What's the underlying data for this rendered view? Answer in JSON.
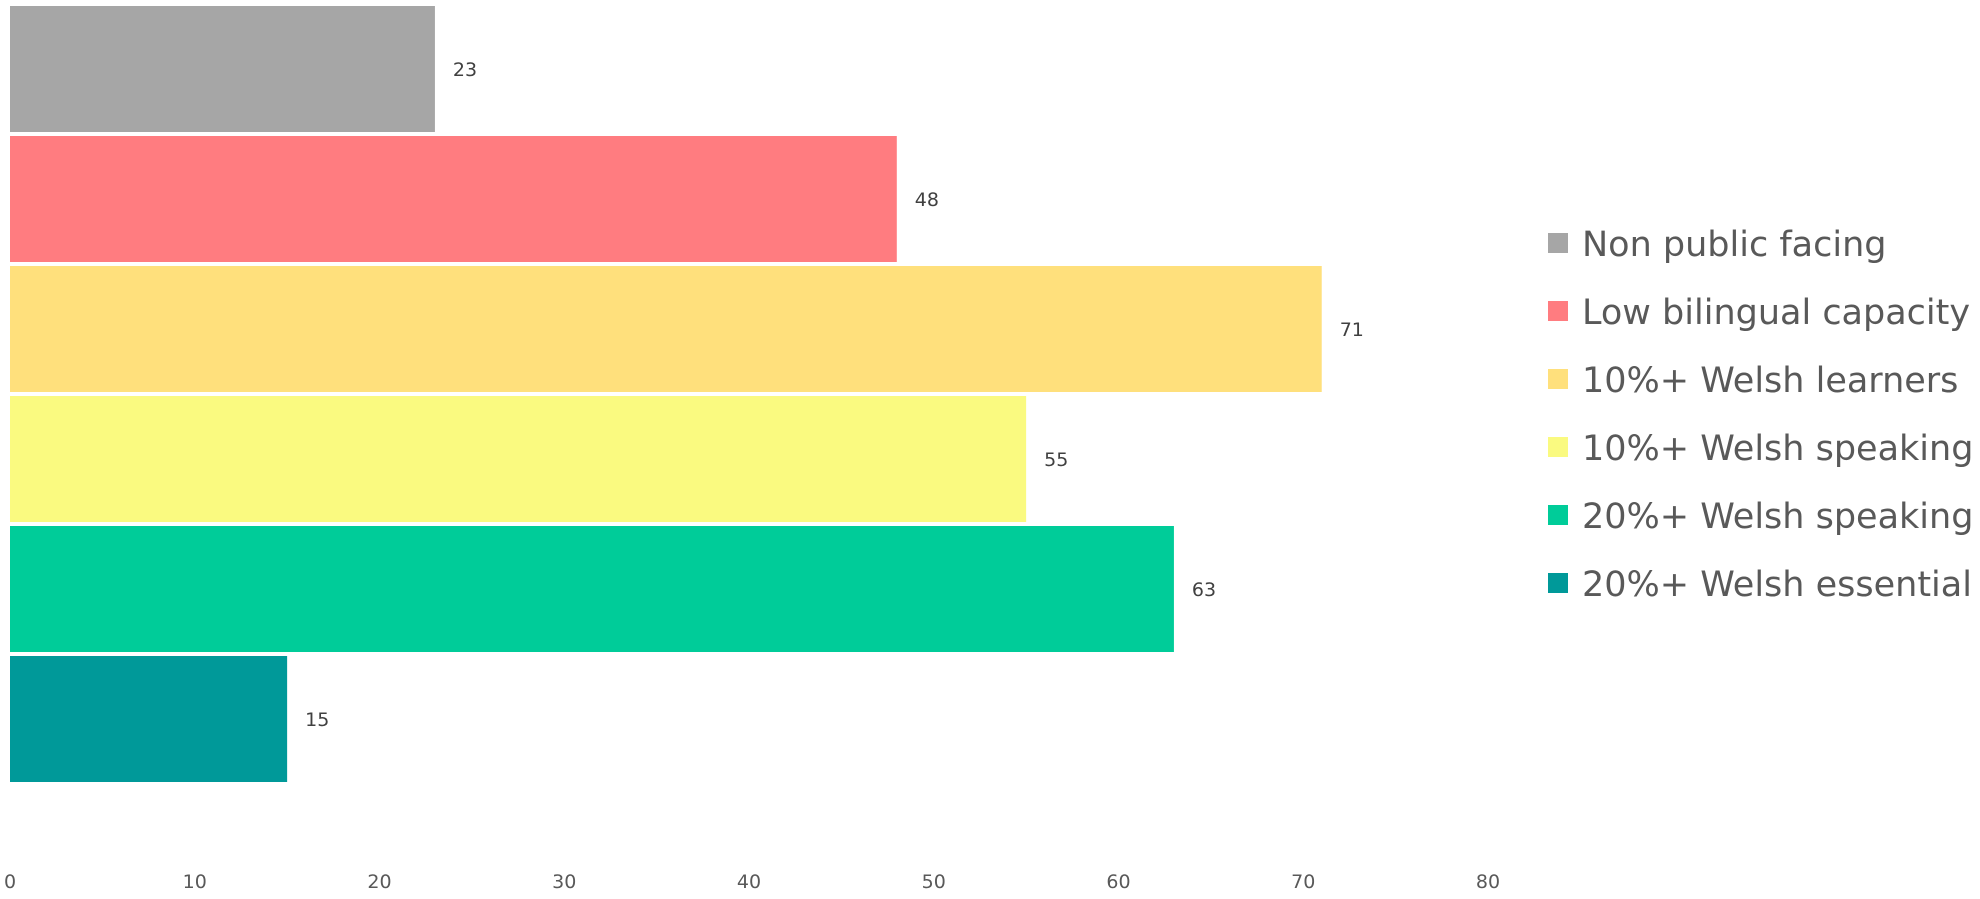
{
  "chart_data": {
    "type": "bar",
    "orientation": "horizontal",
    "categories": [
      "Non public facing",
      "Low bilingual capacity",
      "10%+ Welsh learners",
      "10%+ Welsh speaking",
      "20%+ Welsh speaking",
      "20%+ Welsh essential"
    ],
    "values": [
      23,
      48,
      71,
      55,
      63,
      15
    ],
    "colors": [
      "#A6A6A6",
      "#FF7C80",
      "#FFE07C",
      "#FAFA80",
      "#00CC99",
      "#009999"
    ],
    "title": "",
    "xlabel": "",
    "ylabel": "",
    "xlim": [
      0,
      80
    ],
    "xticks": [
      0,
      10,
      20,
      30,
      40,
      50,
      60,
      70,
      80
    ],
    "data_labels": [
      "23",
      "48",
      "71",
      "55",
      "63",
      "15"
    ],
    "grid": false,
    "legend": {
      "position": "right",
      "entries": [
        "Non public facing",
        "Low bilingual capacity",
        "10%+ Welsh learners",
        "10%+ Welsh speaking",
        "20%+ Welsh speaking",
        "20%+ Welsh essential"
      ]
    }
  }
}
